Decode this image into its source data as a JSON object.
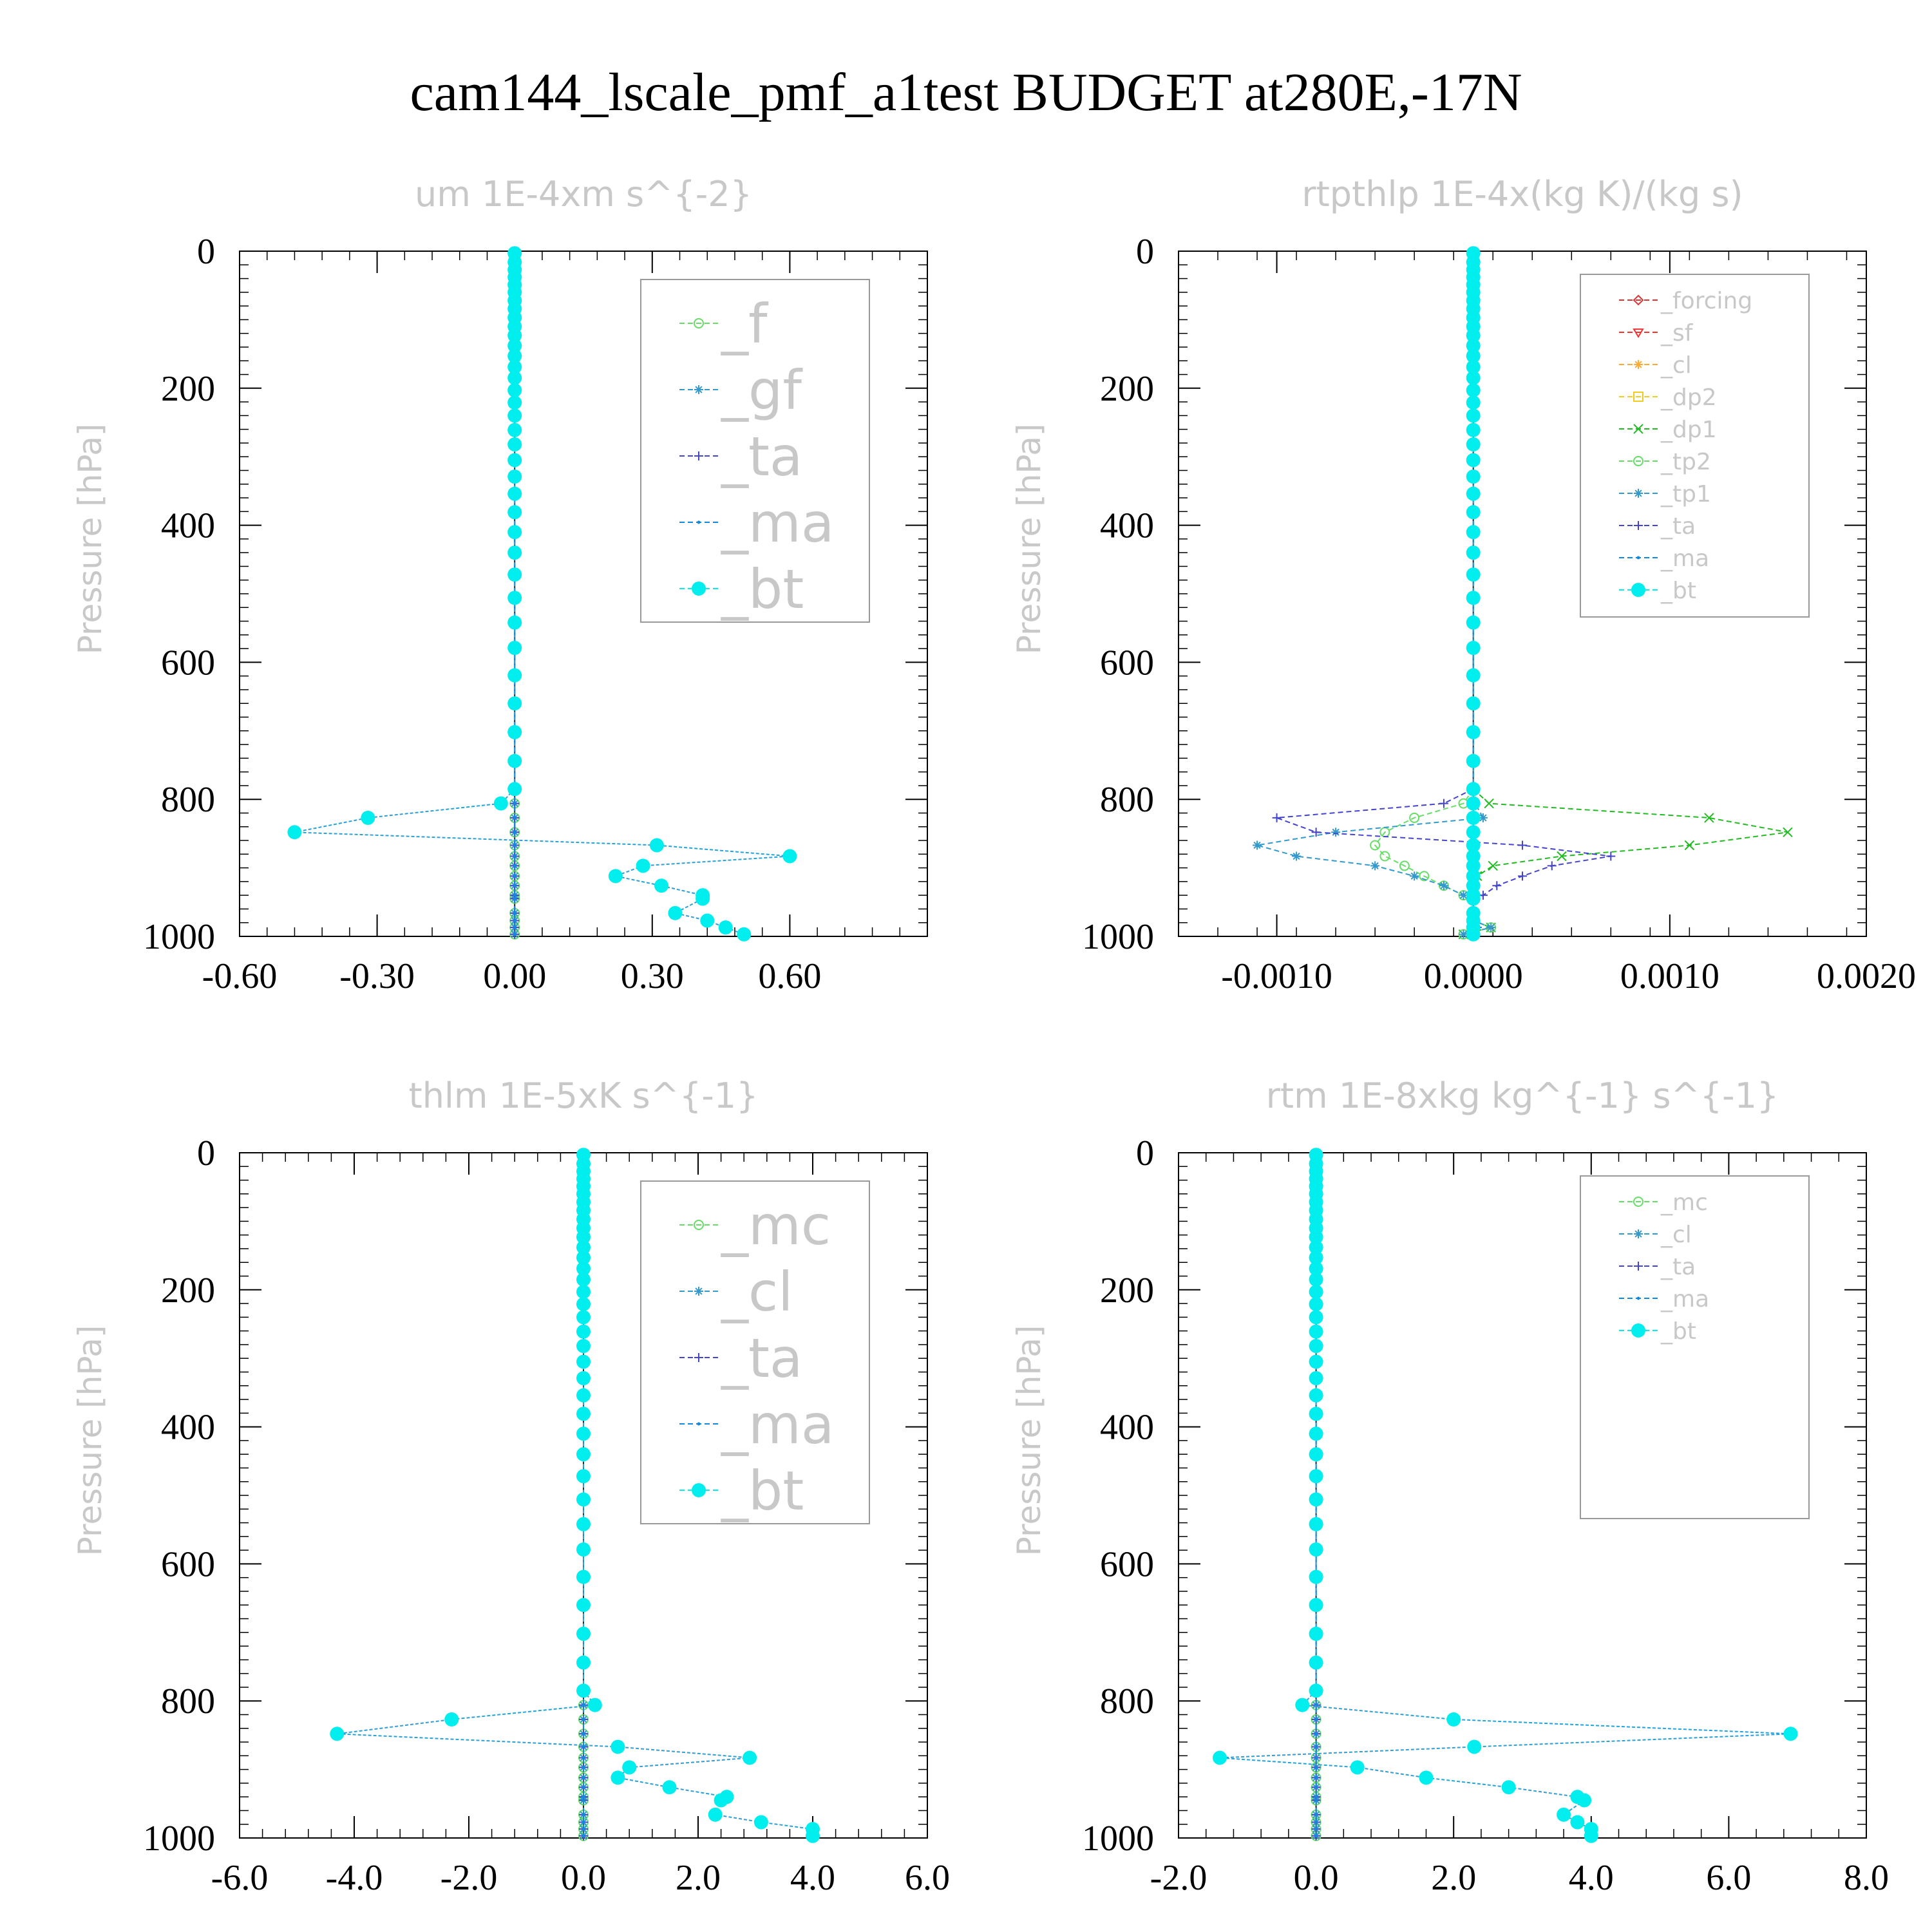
{
  "title": "cam144_lscale_pmf_a1test  BUDGET at280E,-17N",
  "chart_data": [
    {
      "type": "line",
      "title": "um  1E-4xm s^{-2}",
      "ylabel": "Pressure [hPa]",
      "xlim": [
        -0.6,
        0.9
      ],
      "ylim": [
        1000,
        0
      ],
      "xticks": [
        "-0.60",
        "-0.30",
        "0.00",
        "0.30",
        "0.60"
      ],
      "yticks": [
        "0",
        "200",
        "400",
        "600",
        "800",
        "1000"
      ],
      "legend_position": "top-right",
      "pressure": [
        3,
        16,
        27,
        38,
        49,
        60,
        72,
        84,
        97,
        110,
        123,
        138,
        153,
        169,
        185,
        203,
        221,
        240,
        261,
        282,
        305,
        329,
        354,
        381,
        410,
        440,
        472,
        506,
        542,
        579,
        619,
        660,
        702,
        744,
        785,
        806,
        827,
        848,
        867,
        883,
        897,
        912,
        926,
        940,
        945,
        966,
        977,
        987,
        997
      ],
      "zero_series": [
        "_f",
        "_gf",
        "_ta",
        "_ma"
      ],
      "series": [
        {
          "name": "_f",
          "color": "#66dd66",
          "values": []
        },
        {
          "name": "_gf",
          "color": "#3399cc",
          "values": []
        },
        {
          "name": "_ta",
          "color": "#4444cc",
          "values": []
        },
        {
          "name": "_ma",
          "color": "#1188dd",
          "values": []
        },
        {
          "name": "_bt",
          "color": "#00eeee",
          "values": [
            0,
            0,
            0,
            0,
            0,
            0,
            0,
            0,
            0,
            0,
            0,
            0,
            0,
            0,
            0,
            0,
            0,
            0,
            0,
            0,
            0,
            0,
            0,
            0,
            0,
            0,
            0,
            0,
            0,
            0,
            0,
            0,
            0,
            0,
            0,
            -0.03,
            -0.32,
            -0.48,
            0.31,
            0.6,
            0.28,
            0.22,
            0.32,
            0.41,
            0.41,
            0.35,
            0.42,
            0.46,
            0.5
          ]
        }
      ]
    },
    {
      "type": "line",
      "title": "rtpthlp  1E-4x(kg K)/(kg s)",
      "ylabel": "Pressure [hPa]",
      "xlim": [
        -0.0015,
        0.002
      ],
      "ylim": [
        1000,
        0
      ],
      "xticks": [
        "-0.0010",
        "0.0000",
        "0.0010",
        "0.0020"
      ],
      "yticks": [
        "0",
        "200",
        "400",
        "600",
        "800",
        "1000"
      ],
      "legend_position": "top-right",
      "pressure": [
        3,
        16,
        27,
        38,
        49,
        60,
        72,
        84,
        97,
        110,
        123,
        138,
        153,
        169,
        185,
        203,
        221,
        240,
        261,
        282,
        305,
        329,
        354,
        381,
        410,
        440,
        472,
        506,
        542,
        579,
        619,
        660,
        702,
        744,
        785,
        806,
        827,
        848,
        867,
        883,
        897,
        912,
        926,
        940,
        945,
        966,
        977,
        987,
        997
      ],
      "zero_series": [
        "_forcing",
        "_sf",
        "_cl",
        "_dp2",
        "_bt"
      ],
      "series": [
        {
          "name": "_forcing",
          "color": "#dd3333",
          "values": []
        },
        {
          "name": "_sf",
          "color": "#ee3333",
          "values": []
        },
        {
          "name": "_cl",
          "color": "#ffaa33",
          "values": []
        },
        {
          "name": "_dp2",
          "color": "#eecc22",
          "values": []
        },
        {
          "name": "_dp1",
          "color": "#22bb22",
          "values": [
            0,
            0,
            0,
            0,
            0,
            0,
            0,
            0,
            0,
            0,
            0,
            0,
            0,
            0,
            0,
            0,
            0,
            0,
            0,
            0,
            0,
            0,
            0,
            0,
            0,
            0,
            0,
            0,
            0,
            0,
            0,
            0,
            0,
            0,
            0,
            8e-05,
            0.0012,
            0.0016,
            0.0011,
            0.00045,
            0.0001,
            2e-05,
            0,
            0,
            0,
            0,
            0,
            9e-05,
            -5e-05
          ]
        },
        {
          "name": "_tp2",
          "color": "#66dd66",
          "values": [
            0,
            0,
            0,
            0,
            0,
            0,
            0,
            0,
            0,
            0,
            0,
            0,
            0,
            0,
            0,
            0,
            0,
            0,
            0,
            0,
            0,
            0,
            0,
            0,
            0,
            0,
            0,
            0,
            0,
            0,
            0,
            0,
            0,
            0,
            0,
            -5e-05,
            -0.0003,
            -0.00045,
            -0.0005,
            -0.00045,
            -0.00035,
            -0.00025,
            -0.00015,
            -5e-05,
            0,
            0,
            0,
            9e-05,
            -5e-05
          ]
        },
        {
          "name": "_tp1",
          "color": "#3399cc",
          "values": [
            0,
            0,
            0,
            0,
            0,
            0,
            0,
            0,
            0,
            0,
            0,
            0,
            0,
            0,
            0,
            0,
            0,
            0,
            0,
            0,
            0,
            0,
            0,
            0,
            0,
            0,
            0,
            0,
            0,
            0,
            0,
            0,
            0,
            0,
            0,
            1e-05,
            5e-05,
            -0.0007,
            -0.0011,
            -0.0009,
            -0.0005,
            -0.0003,
            -0.00015,
            -5e-05,
            0,
            0,
            0,
            9e-05,
            -5e-05
          ]
        },
        {
          "name": "_ta",
          "color": "#4444cc",
          "values": [
            0,
            0,
            0,
            0,
            0,
            0,
            0,
            0,
            0,
            0,
            0,
            0,
            0,
            0,
            0,
            0,
            0,
            0,
            0,
            0,
            0,
            0,
            0,
            0,
            0,
            0,
            0,
            0,
            0,
            0,
            0,
            0,
            0,
            0,
            0,
            -0.00015,
            -0.001,
            -0.0008,
            0.00025,
            0.0007,
            0.0004,
            0.00025,
            0.00012,
            5e-05,
            0,
            0,
            0,
            2e-05,
            0
          ]
        },
        {
          "name": "_ma",
          "color": "#1188dd",
          "values": []
        },
        {
          "name": "_bt",
          "color": "#00eeee",
          "values": []
        }
      ]
    },
    {
      "type": "line",
      "title": "thlm  1E-5xK s^{-1}",
      "ylabel": "Pressure [hPa]",
      "xlim": [
        -6.0,
        6.0
      ],
      "ylim": [
        1000,
        0
      ],
      "xticks": [
        "-6.0",
        "-4.0",
        "-2.0",
        "0.0",
        "2.0",
        "4.0",
        "6.0"
      ],
      "yticks": [
        "0",
        "200",
        "400",
        "600",
        "800",
        "1000"
      ],
      "legend_position": "top-right",
      "pressure": [
        3,
        16,
        27,
        38,
        49,
        60,
        72,
        84,
        97,
        110,
        123,
        138,
        153,
        169,
        185,
        203,
        221,
        240,
        261,
        282,
        305,
        329,
        354,
        381,
        410,
        440,
        472,
        506,
        542,
        579,
        619,
        660,
        702,
        744,
        785,
        806,
        827,
        848,
        867,
        883,
        897,
        912,
        926,
        940,
        945,
        966,
        977,
        987,
        997
      ],
      "zero_series": [
        "_mc",
        "_cl",
        "_ta",
        "_ma"
      ],
      "series": [
        {
          "name": "_mc",
          "color": "#66dd66",
          "values": []
        },
        {
          "name": "_cl",
          "color": "#3399cc",
          "values": []
        },
        {
          "name": "_ta",
          "color": "#4444cc",
          "values": []
        },
        {
          "name": "_ma",
          "color": "#1188dd",
          "values": []
        },
        {
          "name": "_bt",
          "color": "#00eeee",
          "values": [
            0,
            0,
            0,
            0,
            0,
            0,
            0,
            0,
            0,
            0,
            0,
            0,
            0,
            0,
            0,
            0,
            0,
            0,
            0,
            0,
            0,
            0,
            0,
            0,
            0,
            0,
            0,
            0,
            0,
            0,
            0,
            0,
            0,
            0,
            0,
            0.2,
            -2.3,
            -4.3,
            0.6,
            2.9,
            0.8,
            0.6,
            1.5,
            2.5,
            2.4,
            2.3,
            3.1,
            4.0,
            4.0
          ]
        }
      ]
    },
    {
      "type": "line",
      "title": "rtm  1E-8xkg kg^{-1} s^{-1}",
      "ylabel": "Pressure [hPa]",
      "xlim": [
        -2.0,
        8.0
      ],
      "ylim": [
        1000,
        0
      ],
      "xticks": [
        "-2.0",
        "0.0",
        "2.0",
        "4.0",
        "6.0",
        "8.0"
      ],
      "yticks": [
        "0",
        "200",
        "400",
        "600",
        "800",
        "1000"
      ],
      "legend_position": "top-right",
      "pressure": [
        3,
        16,
        27,
        38,
        49,
        60,
        72,
        84,
        97,
        110,
        123,
        138,
        153,
        169,
        185,
        203,
        221,
        240,
        261,
        282,
        305,
        329,
        354,
        381,
        410,
        440,
        472,
        506,
        542,
        579,
        619,
        660,
        702,
        744,
        785,
        806,
        827,
        848,
        867,
        883,
        897,
        912,
        926,
        940,
        945,
        966,
        977,
        987,
        997
      ],
      "zero_series": [
        "_mc",
        "_cl",
        "_ta",
        "_ma"
      ],
      "series": [
        {
          "name": "_mc",
          "color": "#66dd66",
          "values": []
        },
        {
          "name": "_cl",
          "color": "#3399cc",
          "values": []
        },
        {
          "name": "_ta",
          "color": "#4444cc",
          "values": []
        },
        {
          "name": "_ma",
          "color": "#1188dd",
          "values": []
        },
        {
          "name": "_bt",
          "color": "#00eeee",
          "values": [
            0,
            0,
            0,
            0,
            0,
            0,
            0,
            0,
            0,
            0,
            0,
            0,
            0,
            0,
            0,
            0,
            0,
            0,
            0,
            0,
            0,
            0,
            0,
            0,
            0,
            0,
            0,
            0,
            0,
            0,
            0,
            0,
            0,
            0,
            0,
            -0.2,
            2.0,
            6.9,
            2.3,
            -1.4,
            0.6,
            1.6,
            2.8,
            3.8,
            3.9,
            3.6,
            3.8,
            4.0,
            4.0
          ]
        }
      ]
    }
  ]
}
